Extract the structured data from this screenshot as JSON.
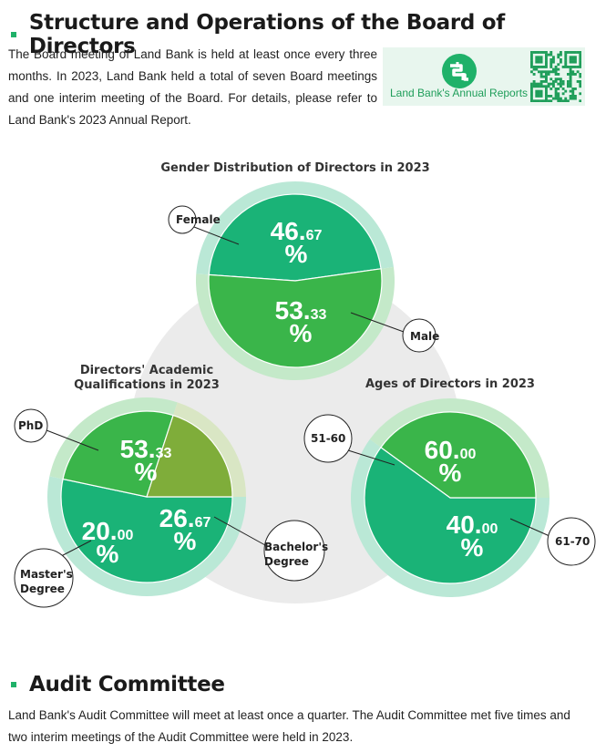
{
  "section1": {
    "title": "Structure and Operations of the Board of Directors",
    "intro": "The Board meeting of Land Bank is held at least once every three months. In 2023, Land Bank held a total of seven Board meetings and one interim meeting of the Board. For details, please refer to Land Bank's 2023 Annual Report."
  },
  "qr_promo": {
    "caption": "Land Bank's Annual Reports",
    "logo_icon": "land-bank-logo",
    "qr_icon": "qr-code"
  },
  "chart_data": [
    {
      "type": "pie",
      "title": "Gender Distribution of Directors in 2023",
      "unit": "%",
      "slices": [
        {
          "label": "Female",
          "value": 46.67,
          "int": "46.",
          "dec": "67",
          "color": "#1ab377"
        },
        {
          "label": "Male",
          "value": 53.33,
          "int": "53.",
          "dec": "33",
          "color": "#3ab54a"
        }
      ]
    },
    {
      "type": "pie",
      "title": "Directors' Academic Qualifications in 2023",
      "title_lines": [
        "Directors' Academic",
        "Qualifications in 2023"
      ],
      "unit": "%",
      "slices": [
        {
          "label": "PhD",
          "value": 53.33,
          "int": "53.",
          "dec": "33",
          "color": "#1ab377"
        },
        {
          "label": "Bachelor's Degree",
          "label_lines": [
            "Bachelor's",
            "Degree"
          ],
          "value": 26.67,
          "int": "26.",
          "dec": "67",
          "color": "#3ab54a"
        },
        {
          "label": "Master's Degree",
          "label_lines": [
            "Master's",
            "Degree"
          ],
          "value": 20.0,
          "int": "20.",
          "dec": "00",
          "color": "#7fad3a"
        }
      ]
    },
    {
      "type": "pie",
      "title": "Ages of Directors in 2023",
      "unit": "%",
      "slices": [
        {
          "label": "51-60",
          "value": 60.0,
          "int": "60.",
          "dec": "00",
          "color": "#1ab377"
        },
        {
          "label": "61-70",
          "value": 40.0,
          "int": "40.",
          "dec": "00",
          "color": "#3ab54a"
        }
      ]
    }
  ],
  "section2": {
    "title": "Audit Committee",
    "text": "Land Bank's Audit Committee will meet at least once a quarter. The Audit Committee met five times and two interim meetings of the Audit Committee were held in 2023."
  }
}
